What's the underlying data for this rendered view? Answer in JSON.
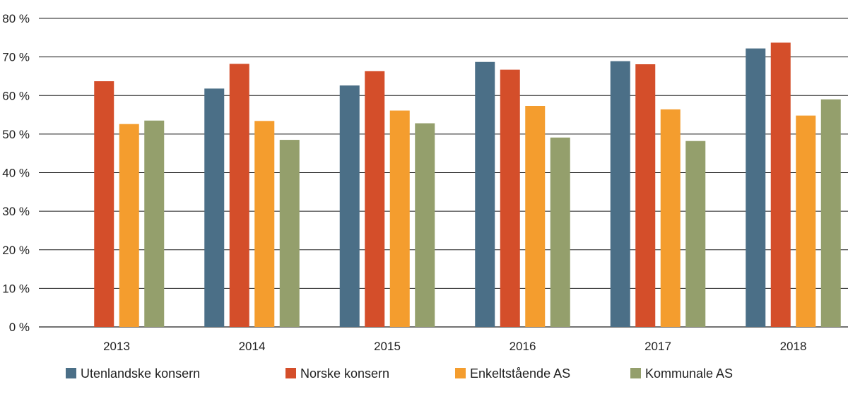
{
  "chart_data": {
    "type": "bar",
    "categories": [
      "2013",
      "2014",
      "2015",
      "2016",
      "2017",
      "2018"
    ],
    "series": [
      {
        "name": "Utenlandske konsern",
        "color": "#4b6f87",
        "values": [
          null,
          61.8,
          62.6,
          68.7,
          68.9,
          72.2
        ]
      },
      {
        "name": "Norske konsern",
        "color": "#d44e2a",
        "values": [
          63.7,
          68.2,
          66.3,
          66.7,
          68.1,
          73.7
        ]
      },
      {
        "name": "Enkeltstående AS",
        "color": "#f49d2e",
        "values": [
          52.6,
          53.4,
          56.1,
          57.3,
          56.4,
          54.8
        ]
      },
      {
        "name": "Kommunale AS",
        "color": "#949f6c",
        "values": [
          53.5,
          48.5,
          52.8,
          49.1,
          48.2,
          59.0
        ]
      }
    ],
    "yticks": [
      "0 %",
      "10 %",
      "20 %",
      "30 %",
      "40 %",
      "50 %",
      "60 %",
      "70 %",
      "80 %"
    ],
    "ylim": [
      0,
      80
    ],
    "grid": true,
    "legend": "bottom",
    "title": "",
    "xlabel": "",
    "ylabel": ""
  }
}
